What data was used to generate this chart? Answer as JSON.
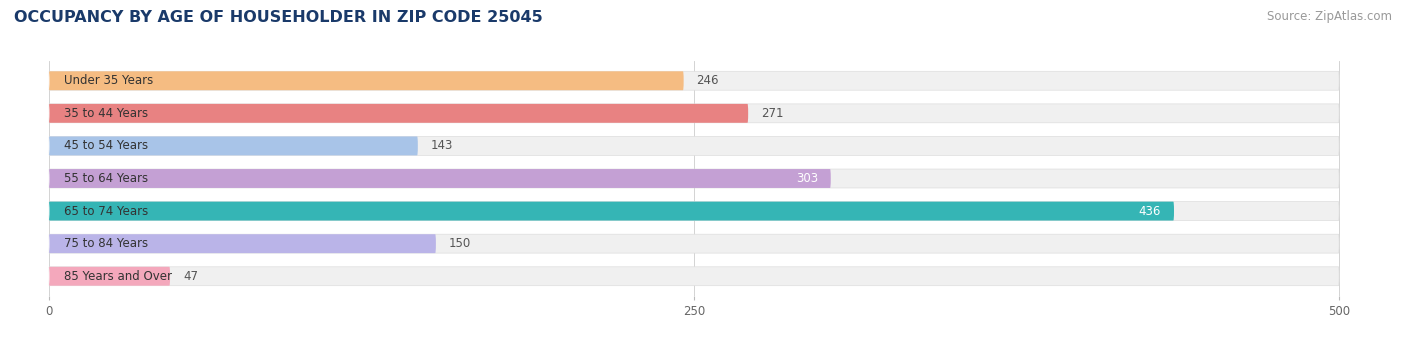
{
  "title": "OCCUPANCY BY AGE OF HOUSEHOLDER IN ZIP CODE 25045",
  "source": "Source: ZipAtlas.com",
  "categories": [
    "Under 35 Years",
    "35 to 44 Years",
    "45 to 54 Years",
    "55 to 64 Years",
    "65 to 74 Years",
    "75 to 84 Years",
    "85 Years and Over"
  ],
  "values": [
    246,
    271,
    143,
    303,
    436,
    150,
    47
  ],
  "bar_colors": [
    "#f5bc82",
    "#e88282",
    "#a8c4e8",
    "#c4a0d4",
    "#35b5b5",
    "#bab4e8",
    "#f4a8bc"
  ],
  "bar_bg_color": "#f0f0f0",
  "bar_border_color": "#dddddd",
  "x_max": 500,
  "xlim_min": -8,
  "xlim_max": 515,
  "xticks": [
    0,
    250,
    500
  ],
  "title_fontsize": 11.5,
  "source_fontsize": 8.5,
  "label_fontsize": 8.5,
  "value_fontsize": 8.5,
  "bg_color": "#ffffff",
  "title_color": "#1a3a6a",
  "source_color": "#999999",
  "value_color_outside": "#555555",
  "value_color_inside": "#ffffff",
  "inside_threshold": 303
}
